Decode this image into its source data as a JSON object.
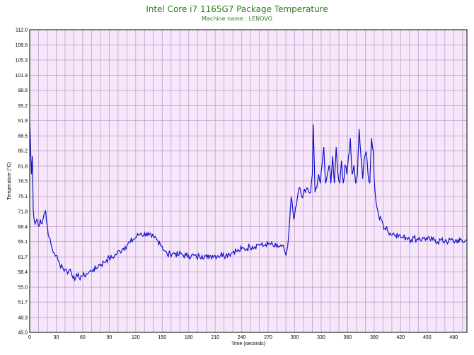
{
  "chart_data": {
    "type": "line",
    "title": "Intel Core i7 1165G7 Package Temperature",
    "subtitle": "Machine name : LENOVO",
    "xlabel": "Time (seconds)",
    "ylabel": "Temperature (°C)",
    "xlim": [
      0,
      495
    ],
    "ylim": [
      45.0,
      112.0
    ],
    "x_ticks": [
      "0",
      "30",
      "60",
      "90",
      "120",
      "150",
      "180",
      "210",
      "240",
      "270",
      "300",
      "330",
      "360",
      "390",
      "420",
      "450",
      "480"
    ],
    "y_ticks": [
      "112.0",
      "108.6",
      "105.3",
      "101.9",
      "98.6",
      "95.2",
      "91.9",
      "88.5",
      "85.2",
      "81.8",
      "78.5",
      "75.1",
      "71.8",
      "68.4",
      "65.1",
      "61.7",
      "58.4",
      "55.0",
      "51.7",
      "48.3",
      "45.0"
    ],
    "grid": true,
    "colors": {
      "line": "#1010c8",
      "plot_bg": "#f6e6fa",
      "grid": "#c29ccc",
      "title": "#2e7d1e"
    },
    "series": [
      {
        "name": "",
        "points": [
          [
            0,
            91.5
          ],
          [
            1,
            86
          ],
          [
            2,
            80
          ],
          [
            3,
            84
          ],
          [
            4,
            72
          ],
          [
            5,
            70
          ],
          [
            6,
            69
          ],
          [
            8,
            70
          ],
          [
            10,
            68.5
          ],
          [
            12,
            70
          ],
          [
            14,
            69
          ],
          [
            16,
            71
          ],
          [
            18,
            72
          ],
          [
            19,
            69.5
          ],
          [
            20,
            68.5
          ],
          [
            22,
            66
          ],
          [
            24,
            64.5
          ],
          [
            26,
            63
          ],
          [
            28,
            62.5
          ],
          [
            30,
            62
          ],
          [
            32,
            61
          ],
          [
            34,
            60
          ],
          [
            36,
            60
          ],
          [
            38,
            59
          ],
          [
            40,
            59
          ],
          [
            42,
            58.5
          ],
          [
            44,
            58.5
          ],
          [
            46,
            59
          ],
          [
            48,
            57.5
          ],
          [
            50,
            57.5
          ],
          [
            52,
            57
          ],
          [
            54,
            57.5
          ],
          [
            56,
            57
          ],
          [
            58,
            57.5
          ],
          [
            60,
            57.5
          ],
          [
            62,
            57.5
          ],
          [
            64,
            58
          ],
          [
            66,
            58
          ],
          [
            68,
            58.5
          ],
          [
            70,
            58.5
          ],
          [
            72,
            59
          ],
          [
            75,
            59
          ],
          [
            78,
            60
          ],
          [
            81,
            60
          ],
          [
            84,
            60.5
          ],
          [
            87,
            61
          ],
          [
            90,
            61.5
          ],
          [
            93,
            61.5
          ],
          [
            96,
            62
          ],
          [
            99,
            62.5
          ],
          [
            102,
            63
          ],
          [
            105,
            63.5
          ],
          [
            108,
            64
          ],
          [
            111,
            64.5
          ],
          [
            114,
            65
          ],
          [
            117,
            65.5
          ],
          [
            120,
            66
          ],
          [
            123,
            66.5
          ],
          [
            126,
            67
          ],
          [
            129,
            66.5
          ],
          [
            132,
            67
          ],
          [
            135,
            66.5
          ],
          [
            138,
            66
          ],
          [
            141,
            66
          ],
          [
            144,
            65.5
          ],
          [
            147,
            65
          ],
          [
            150,
            64
          ],
          [
            153,
            63
          ],
          [
            156,
            62
          ],
          [
            159,
            62.5
          ],
          [
            162,
            62.5
          ],
          [
            165,
            62.5
          ],
          [
            168,
            62
          ],
          [
            171,
            62.5
          ],
          [
            174,
            62
          ],
          [
            177,
            62
          ],
          [
            180,
            62
          ],
          [
            183,
            62
          ],
          [
            186,
            62
          ],
          [
            189,
            61.5
          ],
          [
            192,
            62
          ],
          [
            195,
            62
          ],
          [
            198,
            62
          ],
          [
            201,
            61.5
          ],
          [
            204,
            62
          ],
          [
            207,
            62
          ],
          [
            210,
            62
          ],
          [
            213,
            62
          ],
          [
            216,
            62
          ],
          [
            219,
            62.5
          ],
          [
            222,
            62
          ],
          [
            225,
            62.5
          ],
          [
            228,
            62.5
          ],
          [
            231,
            63
          ],
          [
            234,
            63
          ],
          [
            237,
            63
          ],
          [
            240,
            63.5
          ],
          [
            243,
            63.5
          ],
          [
            246,
            63.5
          ],
          [
            249,
            64
          ],
          [
            252,
            64
          ],
          [
            255,
            64
          ],
          [
            258,
            64.5
          ],
          [
            261,
            64.5
          ],
          [
            264,
            64
          ],
          [
            267,
            64.5
          ],
          [
            270,
            64.5
          ],
          [
            273,
            64.5
          ],
          [
            276,
            64
          ],
          [
            279,
            64
          ],
          [
            282,
            64
          ],
          [
            285,
            64
          ],
          [
            288,
            63.5
          ],
          [
            290,
            62
          ],
          [
            291,
            63
          ],
          [
            292,
            64
          ],
          [
            293,
            66
          ],
          [
            294,
            69
          ],
          [
            295,
            72
          ],
          [
            296,
            75
          ],
          [
            297,
            74
          ],
          [
            298,
            72
          ],
          [
            299,
            70
          ],
          [
            300,
            71
          ],
          [
            302,
            73
          ],
          [
            304,
            76
          ],
          [
            306,
            77
          ],
          [
            308,
            75
          ],
          [
            310,
            76
          ],
          [
            312,
            76
          ],
          [
            314,
            77
          ],
          [
            316,
            76
          ],
          [
            318,
            76
          ],
          [
            320,
            80
          ],
          [
            321,
            91
          ],
          [
            322,
            84
          ],
          [
            323,
            76
          ],
          [
            325,
            77
          ],
          [
            327,
            80
          ],
          [
            329,
            78
          ],
          [
            331,
            82
          ],
          [
            333,
            86
          ],
          [
            335,
            78
          ],
          [
            337,
            80
          ],
          [
            339,
            82
          ],
          [
            341,
            78
          ],
          [
            343,
            84
          ],
          [
            345,
            78
          ],
          [
            347,
            86
          ],
          [
            349,
            80
          ],
          [
            351,
            78
          ],
          [
            353,
            83
          ],
          [
            355,
            78
          ],
          [
            357,
            82
          ],
          [
            359,
            80
          ],
          [
            361,
            84
          ],
          [
            363,
            88
          ],
          [
            365,
            80
          ],
          [
            367,
            82
          ],
          [
            369,
            78
          ],
          [
            371,
            80
          ],
          [
            373,
            90
          ],
          [
            375,
            84
          ],
          [
            377,
            79
          ],
          [
            379,
            84
          ],
          [
            381,
            85
          ],
          [
            383,
            80
          ],
          [
            385,
            78
          ],
          [
            386,
            83
          ],
          [
            387,
            88
          ],
          [
            388,
            86
          ],
          [
            389,
            85
          ],
          [
            390,
            79
          ],
          [
            391,
            76
          ],
          [
            392,
            74
          ],
          [
            394,
            72
          ],
          [
            396,
            70
          ],
          [
            398,
            70
          ],
          [
            400,
            69
          ],
          [
            402,
            68
          ],
          [
            404,
            68.5
          ],
          [
            406,
            67
          ],
          [
            408,
            67
          ],
          [
            410,
            66.5
          ],
          [
            412,
            67
          ],
          [
            414,
            66.5
          ],
          [
            416,
            67
          ],
          [
            418,
            66.5
          ],
          [
            420,
            66
          ],
          [
            423,
            66
          ],
          [
            426,
            66
          ],
          [
            429,
            66
          ],
          [
            432,
            65.5
          ],
          [
            435,
            66
          ],
          [
            438,
            65.5
          ],
          [
            441,
            66
          ],
          [
            444,
            65.5
          ],
          [
            447,
            66
          ],
          [
            450,
            65.5
          ],
          [
            453,
            65.5
          ],
          [
            456,
            65.5
          ],
          [
            459,
            65.5
          ],
          [
            462,
            65
          ],
          [
            465,
            65.5
          ],
          [
            468,
            65
          ],
          [
            471,
            65.5
          ],
          [
            474,
            65
          ],
          [
            477,
            65.5
          ],
          [
            480,
            65
          ],
          [
            483,
            65.5
          ],
          [
            486,
            65
          ],
          [
            489,
            65.5
          ],
          [
            492,
            65
          ],
          [
            495,
            65.5
          ]
        ]
      }
    ]
  }
}
